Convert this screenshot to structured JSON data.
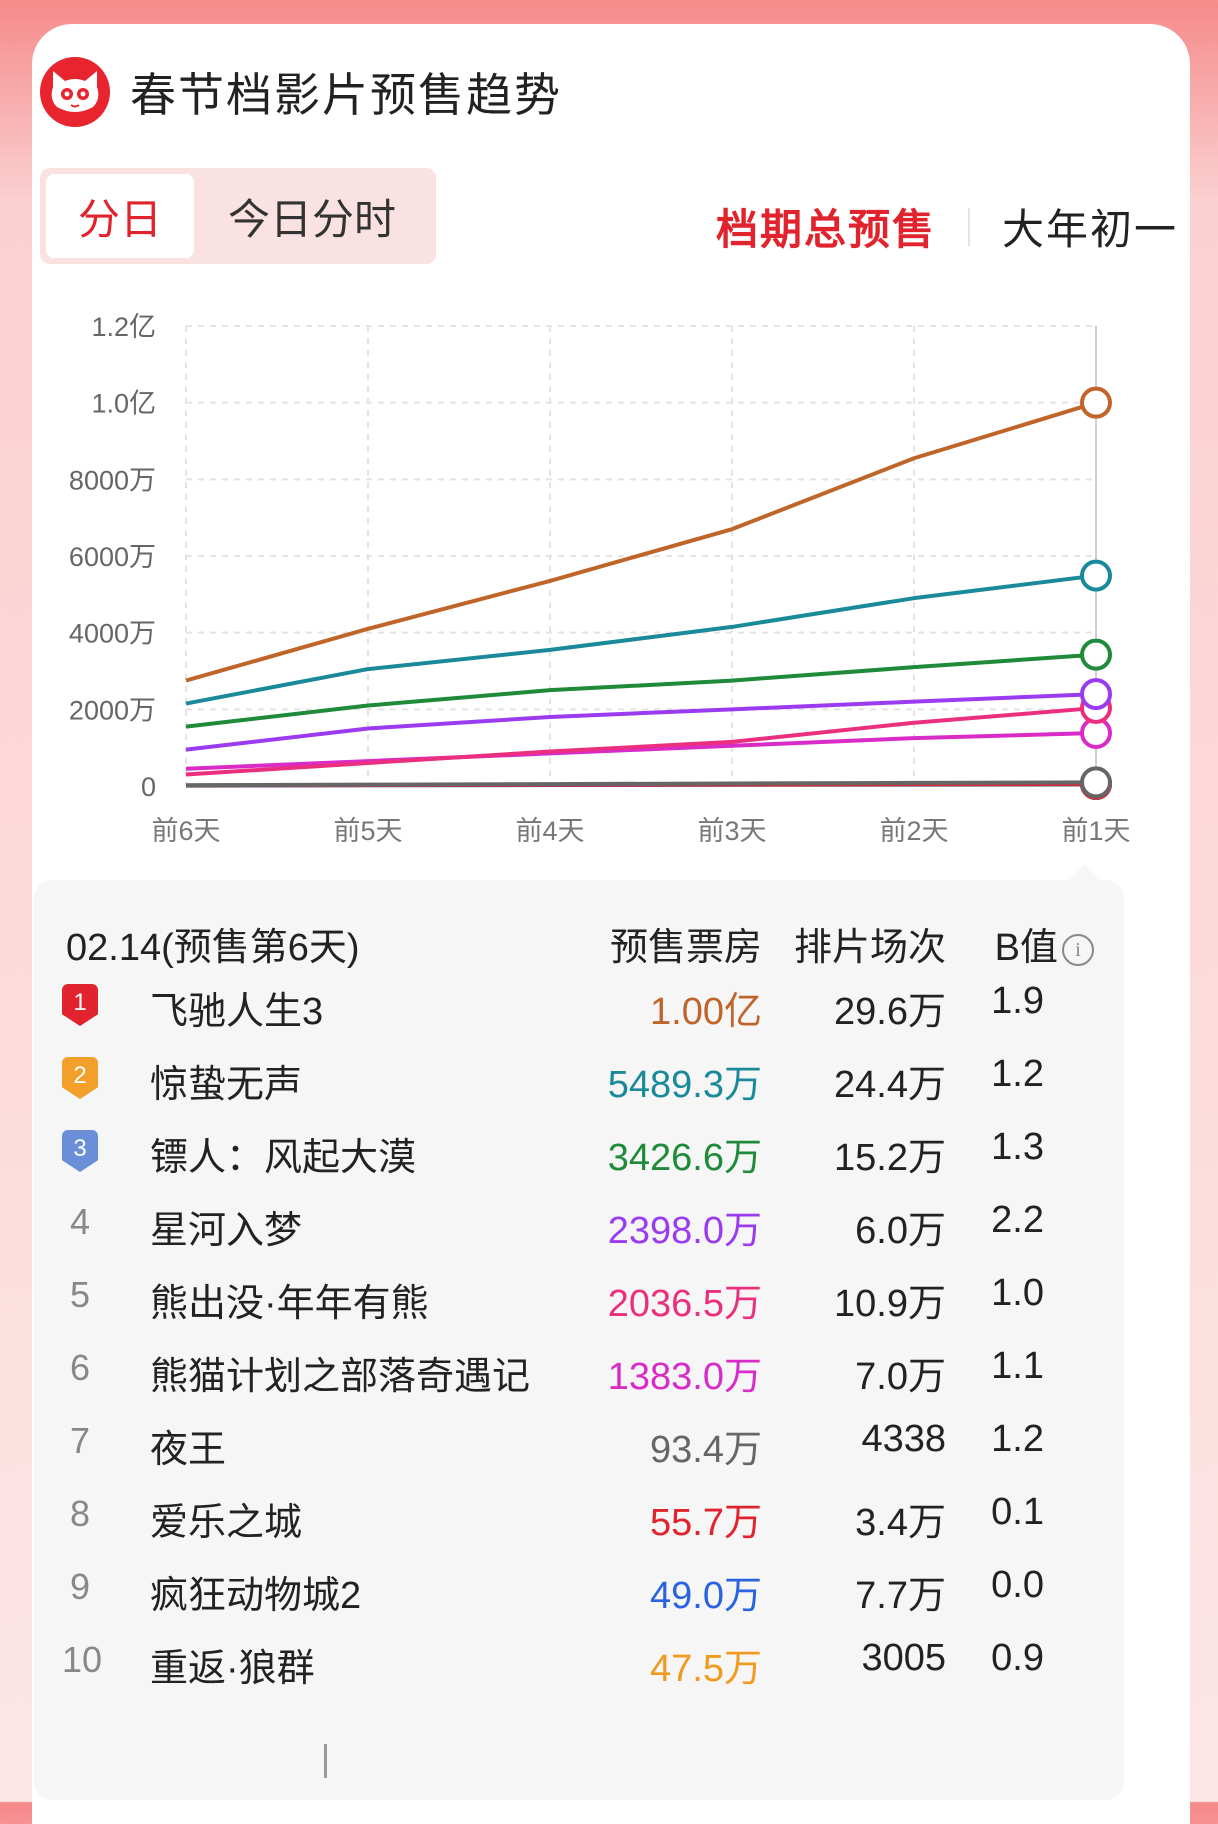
{
  "header": {
    "title": "春节档影片预售趋势",
    "logo_icon": "maoyan-cat-logo"
  },
  "tabs": {
    "daily": "分日",
    "hourly": "今日分时"
  },
  "right_tabs": {
    "total": "档期总预售",
    "day1": "大年初一"
  },
  "chart_data": {
    "type": "line",
    "categories": [
      "前6天",
      "前5天",
      "前4天",
      "前3天",
      "前2天",
      "前1天"
    ],
    "yticks": [
      "0",
      "2000万",
      "4000万",
      "6000万",
      "8000万",
      "1.0亿",
      "1.2亿"
    ],
    "ylim": [
      0,
      12000
    ],
    "unit": "万",
    "series": [
      {
        "name": "飞驰人生3",
        "color": "#c0652a",
        "values": [
          2750,
          4100,
          5350,
          6700,
          8550,
          10000
        ]
      },
      {
        "name": "惊蛰无声",
        "color": "#1a8a9a",
        "values": [
          2150,
          3050,
          3550,
          4150,
          4900,
          5489.3
        ]
      },
      {
        "name": "镖人：风起大漠",
        "color": "#1e8a3a",
        "values": [
          1550,
          2100,
          2500,
          2750,
          3100,
          3426.6
        ]
      },
      {
        "name": "星河入梦",
        "color": "#9b3bf0",
        "values": [
          950,
          1500,
          1800,
          2000,
          2200,
          2398.0
        ]
      },
      {
        "name": "熊出没·年年有熊",
        "color": "#ea2f7e",
        "values": [
          300,
          600,
          900,
          1150,
          1650,
          2036.5
        ]
      },
      {
        "name": "熊猫计划之部落奇遇记",
        "color": "#d82bc8",
        "values": [
          450,
          650,
          850,
          1050,
          1250,
          1383.0
        ]
      },
      {
        "name": "夜王",
        "color": "#666666",
        "values": [
          20,
          35,
          50,
          65,
          80,
          93.4
        ]
      },
      {
        "name": "爱乐之城",
        "color": "#e1232d",
        "values": [
          15,
          25,
          32,
          40,
          48,
          55.7
        ]
      },
      {
        "name": "疯狂动物城2",
        "color": "#2a63e0",
        "values": [
          10,
          18,
          26,
          34,
          42,
          49.0
        ]
      },
      {
        "name": "重返·狼群",
        "color": "#f09a20",
        "values": [
          10,
          18,
          25,
          32,
          40,
          47.5
        ]
      }
    ]
  },
  "table": {
    "date_label": "02.14(预售第6天)",
    "col_box": "预售票房",
    "col_shows": "排片场次",
    "col_b": "B值",
    "rows": [
      {
        "rank": "1",
        "name": "飞驰人生3",
        "box": "1.00亿",
        "shows": "29.6万",
        "b": "1.9",
        "color": "#c0652a",
        "badge": "#e1232d"
      },
      {
        "rank": "2",
        "name": "惊蛰无声",
        "box": "5489.3万",
        "shows": "24.4万",
        "b": "1.2",
        "color": "#1a8a9a",
        "badge": "#f2a02a"
      },
      {
        "rank": "3",
        "name": "镖人：风起大漠",
        "box": "3426.6万",
        "shows": "15.2万",
        "b": "1.3",
        "color": "#1e8a3a",
        "badge": "#6a8ed8"
      },
      {
        "rank": "4",
        "name": "星河入梦",
        "box": "2398.0万",
        "shows": "6.0万",
        "b": "2.2",
        "color": "#9b3bf0"
      },
      {
        "rank": "5",
        "name": "熊出没·年年有熊",
        "box": "2036.5万",
        "shows": "10.9万",
        "b": "1.0",
        "color": "#ea2f7e"
      },
      {
        "rank": "6",
        "name": "熊猫计划之部落奇遇记",
        "box": "1383.0万",
        "shows": "7.0万",
        "b": "1.1",
        "color": "#d82bc8"
      },
      {
        "rank": "7",
        "name": "夜王",
        "box": "93.4万",
        "shows": "4338",
        "b": "1.2",
        "color": "#666666"
      },
      {
        "rank": "8",
        "name": "爱乐之城",
        "box": "55.7万",
        "shows": "3.4万",
        "b": "0.1",
        "color": "#e1232d"
      },
      {
        "rank": "9",
        "name": "疯狂动物城2",
        "box": "49.0万",
        "shows": "7.7万",
        "b": "0.0",
        "color": "#2a63e0"
      },
      {
        "rank": "10",
        "name": "重返·狼群",
        "box": "47.5万",
        "shows": "3005",
        "b": "0.9",
        "color": "#f09a20"
      }
    ]
  }
}
